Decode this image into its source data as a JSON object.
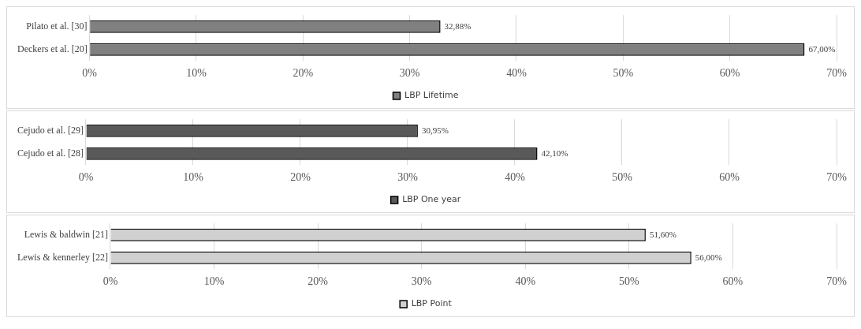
{
  "chart_data": [
    {
      "type": "bar",
      "orientation": "horizontal",
      "categories": [
        "Pilato et al. [30]",
        "Deckers et al. [20]"
      ],
      "series": [
        {
          "name": "LBP Lifetime",
          "color": "#808080",
          "values": [
            32.88,
            67.0
          ],
          "value_labels": [
            "32,88%",
            "67,00%"
          ]
        }
      ],
      "xlim": [
        0,
        70
      ],
      "xticks": [
        {
          "value": 0,
          "label": "0%"
        },
        {
          "value": 10,
          "label": "10%"
        },
        {
          "value": 20,
          "label": "20%"
        },
        {
          "value": 30,
          "label": "30%"
        },
        {
          "value": 40,
          "label": "40%"
        },
        {
          "value": 50,
          "label": "50%"
        },
        {
          "value": 60,
          "label": "60%"
        },
        {
          "value": 70,
          "label": "70%"
        }
      ],
      "grid": "x",
      "legend": "bottom"
    },
    {
      "type": "bar",
      "orientation": "horizontal",
      "categories": [
        "Cejudo et al. [29]",
        "Cejudo et al. [28]"
      ],
      "series": [
        {
          "name": "LBP One year",
          "color": "#595959",
          "values": [
            30.95,
            42.1
          ],
          "value_labels": [
            "30,95%",
            "42,10%"
          ]
        }
      ],
      "xlim": [
        0,
        70
      ],
      "xticks": [
        {
          "value": 0,
          "label": "0%"
        },
        {
          "value": 10,
          "label": "10%"
        },
        {
          "value": 20,
          "label": "20%"
        },
        {
          "value": 30,
          "label": "30%"
        },
        {
          "value": 40,
          "label": "40%"
        },
        {
          "value": 50,
          "label": "50%"
        },
        {
          "value": 60,
          "label": "60%"
        },
        {
          "value": 70,
          "label": "70%"
        }
      ],
      "grid": "x",
      "legend": "bottom"
    },
    {
      "type": "bar",
      "orientation": "horizontal",
      "categories": [
        "Lewis & baldwin [21]",
        "Lewis & kennerley [22]"
      ],
      "series": [
        {
          "name": "LBP Point",
          "color": "#d0d0d0",
          "values": [
            51.6,
            56.0
          ],
          "value_labels": [
            "51,60%",
            "56,00%"
          ]
        }
      ],
      "xlim": [
        0,
        70
      ],
      "xticks": [
        {
          "value": 0,
          "label": "0%"
        },
        {
          "value": 10,
          "label": "10%"
        },
        {
          "value": 20,
          "label": "20%"
        },
        {
          "value": 30,
          "label": "30%"
        },
        {
          "value": 40,
          "label": "40%"
        },
        {
          "value": 50,
          "label": "50%"
        },
        {
          "value": 60,
          "label": "60%"
        },
        {
          "value": 70,
          "label": "70%"
        }
      ],
      "grid": "x",
      "legend": "bottom"
    }
  ]
}
